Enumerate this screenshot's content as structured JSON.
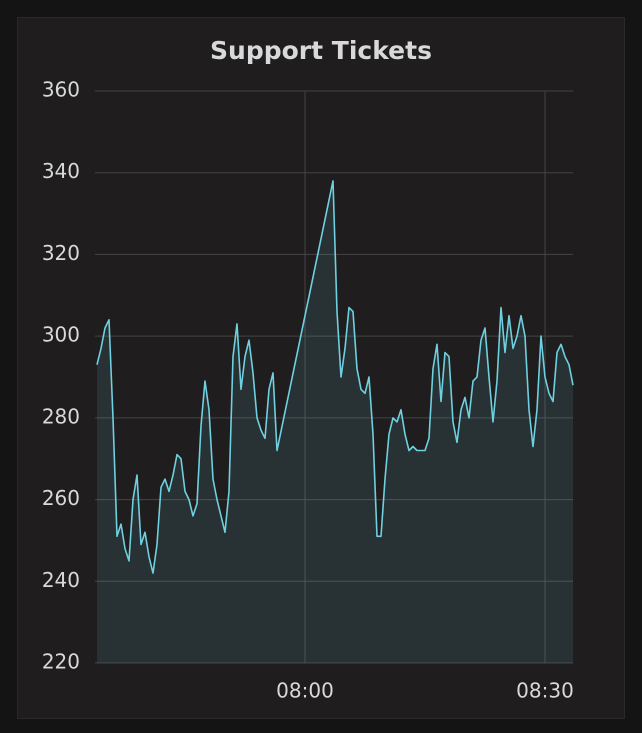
{
  "chart_data": {
    "type": "line",
    "title": "Support Tickets",
    "x": [
      "07:34:00",
      "07:34:30",
      "07:35:00",
      "07:35:30",
      "07:36:00",
      "07:36:30",
      "07:37:00",
      "07:37:30",
      "07:38:00",
      "07:38:30",
      "07:39:00",
      "07:39:30",
      "07:40:00",
      "07:40:30",
      "07:41:00",
      "07:41:30",
      "07:42:00",
      "07:42:30",
      "07:43:00",
      "07:43:30",
      "07:44:00",
      "07:44:30",
      "07:45:00",
      "07:45:30",
      "07:46:00",
      "07:46:30",
      "07:47:00",
      "07:47:30",
      "07:48:00",
      "07:48:30",
      "07:49:00",
      "07:49:30",
      "07:50:00",
      "07:50:30",
      "07:51:00",
      "07:51:30",
      "07:52:00",
      "07:52:30",
      "07:53:00",
      "07:53:30",
      "07:54:00",
      "07:54:30",
      "07:55:00",
      "07:55:30",
      "07:56:00",
      "07:56:30",
      "08:03:30",
      "08:04:00",
      "08:04:30",
      "08:05:00",
      "08:05:30",
      "08:06:00",
      "08:06:30",
      "08:07:00",
      "08:07:30",
      "08:08:00",
      "08:08:30",
      "08:09:00",
      "08:09:30",
      "08:10:00",
      "08:10:30",
      "08:11:00",
      "08:11:30",
      "08:12:00",
      "08:12:30",
      "08:13:00",
      "08:13:30",
      "08:14:00",
      "08:14:30",
      "08:15:00",
      "08:15:30",
      "08:16:00",
      "08:16:30",
      "08:17:00",
      "08:17:30",
      "08:18:00",
      "08:18:30",
      "08:19:00",
      "08:19:30",
      "08:20:00",
      "08:20:30",
      "08:21:00",
      "08:21:30",
      "08:22:00",
      "08:22:30",
      "08:23:00",
      "08:23:30",
      "08:24:00",
      "08:24:30",
      "08:25:00",
      "08:25:30",
      "08:26:00",
      "08:26:30",
      "08:27:00",
      "08:27:30",
      "08:28:00",
      "08:28:30",
      "08:29:00",
      "08:29:30",
      "08:30:00",
      "08:30:30",
      "08:31:00",
      "08:31:30",
      "08:32:00",
      "08:32:30",
      "08:33:00",
      "08:33:30"
    ],
    "series": [
      {
        "name": "Support Tickets",
        "color": "#6ed0e0",
        "values": [
          293,
          297,
          302,
          304,
          280,
          251,
          254,
          248,
          245,
          260,
          266,
          249,
          252,
          246,
          242,
          249,
          263,
          265,
          262,
          266,
          271,
          270,
          262,
          260,
          256,
          259,
          278,
          289,
          282,
          265,
          260,
          256,
          252,
          262,
          295,
          303,
          287,
          295,
          299,
          291,
          280,
          277,
          275,
          287,
          291,
          272,
          338,
          306,
          290,
          297,
          307,
          306,
          292,
          287,
          286,
          290,
          276,
          251,
          251,
          265,
          276,
          280,
          279,
          282,
          276,
          272,
          273,
          272,
          272,
          272,
          275,
          292,
          298,
          284,
          296,
          295,
          279,
          274,
          282,
          285,
          280,
          289,
          290,
          299,
          302,
          290,
          279,
          289,
          307,
          296,
          305,
          297,
          300,
          305,
          300,
          282,
          273,
          282,
          300,
          290,
          286,
          284,
          296,
          298,
          295,
          293,
          288
        ]
      }
    ],
    "xlim": [
      "07:33:45",
      "08:33:30"
    ],
    "xticks": [
      "08:00",
      "08:30"
    ],
    "ylim": [
      220,
      360
    ],
    "yticks": [
      220,
      240,
      260,
      280,
      300,
      320,
      340,
      360
    ],
    "grid": true,
    "fill": true
  }
}
